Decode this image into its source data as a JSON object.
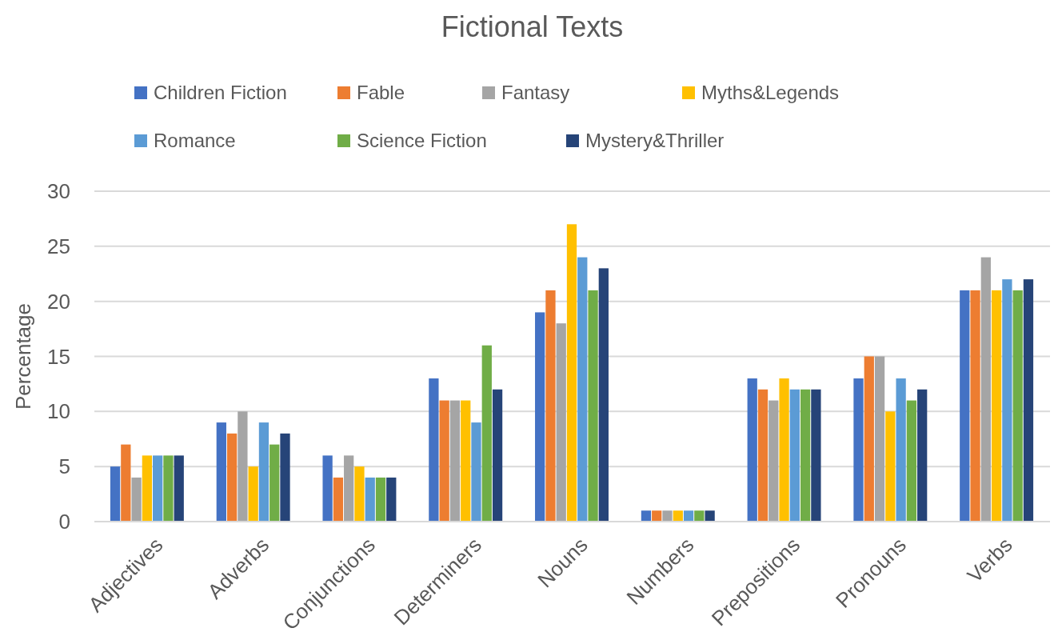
{
  "chart_data": {
    "type": "bar",
    "title": "Fictional Texts",
    "ylabel": "Percentage",
    "categories": [
      "Adjectives",
      "Adverbs",
      "Conjunctions",
      "Determiners",
      "Nouns",
      "Numbers",
      "Prepositions",
      "Pronouns",
      "Verbs"
    ],
    "series": [
      {
        "name": "Children Fiction",
        "color": "#4472c4",
        "values": [
          5,
          9,
          6,
          13,
          19,
          1,
          13,
          13,
          21
        ]
      },
      {
        "name": "Fable",
        "color": "#ed7d31",
        "values": [
          7,
          8,
          4,
          11,
          21,
          1,
          12,
          15,
          21
        ]
      },
      {
        "name": "Fantasy",
        "color": "#a5a5a5",
        "values": [
          4,
          10,
          6,
          11,
          18,
          1,
          11,
          15,
          24
        ]
      },
      {
        "name": "Myths&Legends",
        "color": "#ffc000",
        "values": [
          6,
          5,
          5,
          11,
          27,
          1,
          13,
          10,
          21
        ]
      },
      {
        "name": "Romance",
        "color": "#5b9bd5",
        "values": [
          6,
          9,
          4,
          9,
          24,
          1,
          12,
          13,
          22
        ]
      },
      {
        "name": "Science Fiction",
        "color": "#70ad47",
        "values": [
          6,
          7,
          4,
          16,
          21,
          1,
          12,
          11,
          21
        ]
      },
      {
        "name": "Mystery&Thriller",
        "color": "#264478",
        "values": [
          6,
          8,
          4,
          12,
          23,
          1,
          12,
          12,
          22
        ]
      }
    ],
    "ylim": [
      0,
      30
    ],
    "yticks": [
      0,
      5,
      10,
      15,
      20,
      25,
      30
    ],
    "grid": "y",
    "legend": "top"
  }
}
